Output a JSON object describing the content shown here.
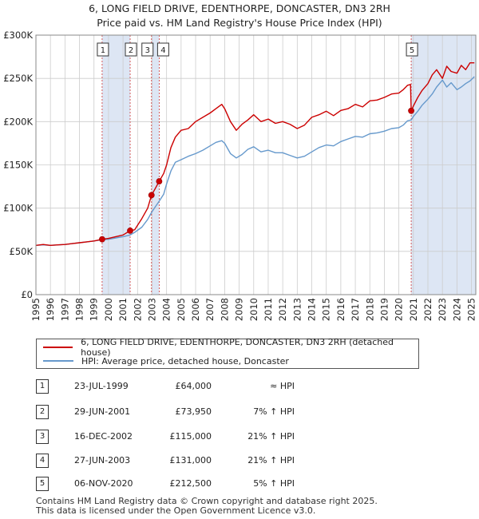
{
  "title_line1": "6, LONG FIELD DRIVE, EDENTHORPE, DONCASTER, DN3 2RH",
  "title_line2": "Price paid vs. HM Land Registry's House Price Index (HPI)",
  "colors": {
    "property": "#cc0000",
    "hpi": "#6699cc",
    "shade": "#dde6f4",
    "grid": "#cccccc",
    "marker_line": "#cc3333"
  },
  "chart_data": {
    "type": "line",
    "title": "6, LONG FIELD DRIVE, EDENTHORPE, DONCASTER, DN3 2RH — Price paid vs. HM Land Registry's House Price Index (HPI)",
    "xlim": [
      1995,
      2025.3
    ],
    "ylim": [
      0,
      300000
    ],
    "y_ticks": [
      0,
      50000,
      100000,
      150000,
      200000,
      250000,
      300000
    ],
    "y_tick_labels": [
      "£0",
      "£50K",
      "£100K",
      "£150K",
      "£200K",
      "£250K",
      "£300K"
    ],
    "x_ticks": [
      1995,
      1996,
      1997,
      1998,
      1999,
      2000,
      2001,
      2002,
      2003,
      2004,
      2005,
      2006,
      2007,
      2008,
      2009,
      2010,
      2011,
      2012,
      2013,
      2014,
      2015,
      2016,
      2017,
      2018,
      2019,
      2020,
      2021,
      2022,
      2023,
      2024,
      2025
    ],
    "x_tick_labels": [
      "1995",
      "1996",
      "1997",
      "1998",
      "1999",
      "2000",
      "2001",
      "2002",
      "2003",
      "2004",
      "2005",
      "2006",
      "2007",
      "2008",
      "2009",
      "2010",
      "2011",
      "2012",
      "2013",
      "2014",
      "2015",
      "2016",
      "2017",
      "2018",
      "2019",
      "2020",
      "2021",
      "2022",
      "2023",
      "2024",
      "2025"
    ],
    "grid": true,
    "shaded_ranges": [
      [
        1999.56,
        2001.49
      ],
      [
        2002.96,
        2003.49
      ],
      [
        2020.85,
        2025.3
      ]
    ],
    "series": [
      {
        "name": "6, LONG FIELD DRIVE, EDENTHORPE, DONCASTER, DN3 2RH (detached house)",
        "x": [
          1995.0,
          1995.5,
          1996.0,
          1996.5,
          1997.0,
          1997.5,
          1998.0,
          1998.5,
          1999.0,
          1999.56,
          2000.0,
          2000.5,
          2001.0,
          2001.49,
          2001.8,
          2002.3,
          2002.7,
          2002.96,
          2003.2,
          2003.49,
          2003.8,
          2004.0,
          2004.3,
          2004.6,
          2005.0,
          2005.5,
          2006.0,
          2006.5,
          2007.0,
          2007.4,
          2007.8,
          2008.0,
          2008.4,
          2008.8,
          2009.2,
          2009.6,
          2010.0,
          2010.5,
          2011.0,
          2011.5,
          2012.0,
          2012.5,
          2013.0,
          2013.5,
          2014.0,
          2014.5,
          2015.0,
          2015.5,
          2016.0,
          2016.5,
          2017.0,
          2017.5,
          2018.0,
          2018.5,
          2019.0,
          2019.5,
          2020.0,
          2020.3,
          2020.6,
          2020.8,
          2020.85,
          2021.0,
          2021.3,
          2021.6,
          2022.0,
          2022.3,
          2022.6,
          2023.0,
          2023.3,
          2023.6,
          2024.0,
          2024.3,
          2024.6,
          2024.9,
          2025.2
        ],
        "values": [
          57000,
          58000,
          57000,
          57500,
          58000,
          59000,
          60000,
          61000,
          62000,
          64000,
          65000,
          67000,
          69000,
          73950,
          75000,
          88000,
          100000,
          115000,
          122000,
          131000,
          140000,
          150000,
          170000,
          182000,
          190000,
          192000,
          200000,
          205000,
          210000,
          215000,
          220000,
          215000,
          200000,
          190000,
          197000,
          202000,
          208000,
          200000,
          203000,
          198000,
          200000,
          197000,
          192000,
          196000,
          205000,
          208000,
          212000,
          207000,
          213000,
          215000,
          220000,
          217000,
          224000,
          225000,
          228000,
          232000,
          233000,
          237000,
          242000,
          243000,
          212500,
          218000,
          228000,
          236000,
          244000,
          254000,
          260000,
          250000,
          264000,
          258000,
          256000,
          265000,
          260000,
          268000,
          268000
        ]
      },
      {
        "name": "HPI: Average price, detached house, Doncaster",
        "x": [
          1995.0,
          1995.5,
          1996.0,
          1996.5,
          1997.0,
          1997.5,
          1998.0,
          1998.5,
          1999.0,
          1999.56,
          2000.0,
          2000.5,
          2001.0,
          2001.49,
          2001.8,
          2002.3,
          2002.7,
          2002.96,
          2003.2,
          2003.49,
          2003.8,
          2004.0,
          2004.3,
          2004.6,
          2005.0,
          2005.5,
          2006.0,
          2006.5,
          2007.0,
          2007.4,
          2007.8,
          2008.0,
          2008.4,
          2008.8,
          2009.2,
          2009.6,
          2010.0,
          2010.5,
          2011.0,
          2011.5,
          2012.0,
          2012.5,
          2013.0,
          2013.5,
          2014.0,
          2014.5,
          2015.0,
          2015.5,
          2016.0,
          2016.5,
          2017.0,
          2017.5,
          2018.0,
          2018.5,
          2019.0,
          2019.5,
          2020.0,
          2020.3,
          2020.6,
          2020.85,
          2021.0,
          2021.3,
          2021.6,
          2022.0,
          2022.3,
          2022.6,
          2023.0,
          2023.3,
          2023.6,
          2024.0,
          2024.3,
          2024.6,
          2024.9,
          2025.2
        ],
        "values": [
          57000,
          57500,
          57000,
          57500,
          58000,
          59000,
          60000,
          61000,
          62000,
          63500,
          64000,
          65500,
          67000,
          69000,
          72000,
          78000,
          87000,
          95000,
          101000,
          108000,
          116000,
          128000,
          143000,
          153000,
          156000,
          160000,
          163000,
          167000,
          172000,
          176000,
          178000,
          175000,
          163000,
          158000,
          162000,
          168000,
          171000,
          165000,
          167000,
          164000,
          164000,
          161000,
          158000,
          160000,
          165000,
          170000,
          173000,
          172000,
          177000,
          180000,
          183000,
          182000,
          186000,
          187000,
          189000,
          192000,
          193000,
          196000,
          201000,
          202000,
          206000,
          212000,
          219000,
          226000,
          232000,
          240000,
          248000,
          240000,
          245000,
          237000,
          240000,
          244000,
          247000,
          252000
        ]
      }
    ],
    "transactions": [
      {
        "label": "1",
        "x": 1999.56,
        "value": 64000
      },
      {
        "label": "2",
        "x": 2001.49,
        "value": 73950
      },
      {
        "label": "3",
        "x": 2002.96,
        "value": 115000
      },
      {
        "label": "4",
        "x": 2003.49,
        "value": 131000
      },
      {
        "label": "5",
        "x": 2020.85,
        "value": 212500
      }
    ]
  },
  "legend": {
    "property_label": "6, LONG FIELD DRIVE, EDENTHORPE, DONCASTER, DN3 2RH (detached house)",
    "hpi_label": "HPI: Average price, detached house, Doncaster"
  },
  "table": [
    {
      "num": "1",
      "date": "23-JUL-1999",
      "price": "£64,000",
      "hpi": "≈ HPI"
    },
    {
      "num": "2",
      "date": "29-JUN-2001",
      "price": "£73,950",
      "hpi": "7% ↑ HPI"
    },
    {
      "num": "3",
      "date": "16-DEC-2002",
      "price": "£115,000",
      "hpi": "21% ↑ HPI"
    },
    {
      "num": "4",
      "date": "27-JUN-2003",
      "price": "£131,000",
      "hpi": "21% ↑ HPI"
    },
    {
      "num": "5",
      "date": "06-NOV-2020",
      "price": "£212,500",
      "hpi": "5% ↑ HPI"
    }
  ],
  "footer_line1": "Contains HM Land Registry data © Crown copyright and database right 2025.",
  "footer_line2": "This data is licensed under the Open Government Licence v3.0."
}
